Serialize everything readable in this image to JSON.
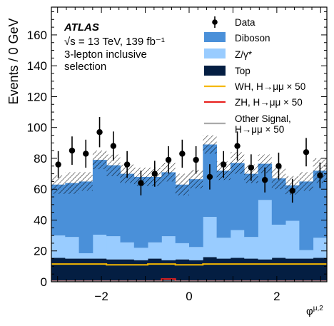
{
  "atlas": {
    "experiment": "ATLAS",
    "energy_lumi": "√s = 13 TeV, 139 fb⁻¹",
    "line1": "3-lepton inclusive",
    "line2": "selection"
  },
  "chart_data": {
    "type": "bar",
    "stacked": true,
    "xlabel": "φ^{μ,2}",
    "ylabel": "Events / 0 GeV",
    "xlim": [
      -3.14159,
      3.14159
    ],
    "ylim": [
      0,
      178
    ],
    "xticks": [
      -2,
      0,
      2
    ],
    "yticks": [
      0,
      20,
      40,
      60,
      80,
      100,
      120,
      140,
      160
    ],
    "bin_edges": [
      -3.14159,
      -2.82743,
      -2.51327,
      -2.19911,
      -1.88496,
      -1.5708,
      -1.25664,
      -0.94248,
      -0.62832,
      -0.31416,
      0.0,
      0.31416,
      0.62832,
      0.94248,
      1.25664,
      1.5708,
      1.88496,
      2.19911,
      2.51327,
      2.82743,
      3.14159
    ],
    "legend_position": "top-right",
    "series": [
      {
        "name": "Top",
        "color": "#041e42",
        "values": [
          15.5,
          15.0,
          15.0,
          15.0,
          14.5,
          14.5,
          14.0,
          15.0,
          14.0,
          14.5,
          14.0,
          16.0,
          15.0,
          15.5,
          15.0,
          14.5,
          15.5,
          15.0,
          15.0,
          15.5
        ]
      },
      {
        "name": "Z/γ*",
        "color": "#99ccff",
        "values": [
          14.5,
          14.0,
          3.5,
          15.5,
          15.0,
          11.0,
          8.0,
          10.5,
          15.5,
          10.5,
          8.5,
          26.0,
          13.5,
          18.0,
          14.0,
          38.5,
          21.5,
          24.5,
          5.5,
          13.0
        ]
      },
      {
        "name": "Diboson",
        "color": "#4a90d9",
        "values": [
          33.0,
          35.0,
          46.5,
          48.5,
          46.0,
          44.5,
          46.0,
          42.5,
          41.5,
          38.0,
          44.0,
          47.0,
          43.5,
          43.5,
          41.0,
          23.5,
          30.0,
          23.0,
          44.5,
          43.5
        ]
      },
      {
        "name": "WH, H→μμ × 50",
        "color": "#f5b800",
        "line": true,
        "values": [
          11.5,
          11.5,
          11.5,
          11.5,
          11.0,
          11.0,
          11.0,
          11.5,
          11.5,
          11.0,
          11.0,
          11.5,
          11.5,
          11.5,
          11.5,
          11.5,
          11.5,
          11.5,
          11.5,
          11.5
        ]
      },
      {
        "name": "ZH, H→μμ × 50",
        "color": "#e8221f",
        "line": true,
        "values": [
          0.4,
          0.4,
          0.4,
          0.4,
          0.4,
          0.4,
          0.4,
          0.4,
          1.8,
          0.4,
          0.4,
          0.4,
          0.4,
          0.4,
          0.4,
          0.4,
          0.4,
          0.4,
          0.4,
          0.4
        ]
      },
      {
        "name": "Other Signal, H→μμ × 50",
        "color": "#aaaaaa",
        "line": true,
        "values": [
          0.3,
          0.3,
          0.3,
          0.3,
          0.3,
          0.3,
          0.3,
          0.3,
          0.3,
          0.3,
          0.3,
          0.3,
          0.3,
          0.3,
          0.3,
          0.3,
          0.3,
          0.3,
          0.3,
          0.3
        ]
      }
    ],
    "uncertainty_halfwidth": [
      6,
      7,
      6,
      6,
      7,
      6,
      6,
      6,
      6,
      7,
      6,
      6,
      6,
      7,
      6,
      6,
      7,
      6,
      6,
      8
    ],
    "data": {
      "name": "Data",
      "x": [
        -2.985,
        -2.67,
        -2.356,
        -2.042,
        -1.728,
        -1.414,
        -1.1,
        -0.785,
        -0.471,
        -0.157,
        0.157,
        0.471,
        0.785,
        1.1,
        1.414,
        1.728,
        2.042,
        2.356,
        2.67,
        2.985
      ],
      "y": [
        76,
        85,
        83,
        97,
        88,
        76,
        64,
        70,
        79,
        83,
        79,
        68,
        76,
        88,
        74,
        66,
        75,
        59,
        84,
        69
      ],
      "err": [
        8.7,
        9.2,
        9.1,
        9.8,
        9.4,
        8.7,
        8.0,
        8.4,
        8.9,
        9.1,
        8.9,
        8.2,
        8.7,
        9.4,
        8.6,
        8.1,
        8.7,
        7.7,
        9.2,
        8.3
      ]
    }
  }
}
